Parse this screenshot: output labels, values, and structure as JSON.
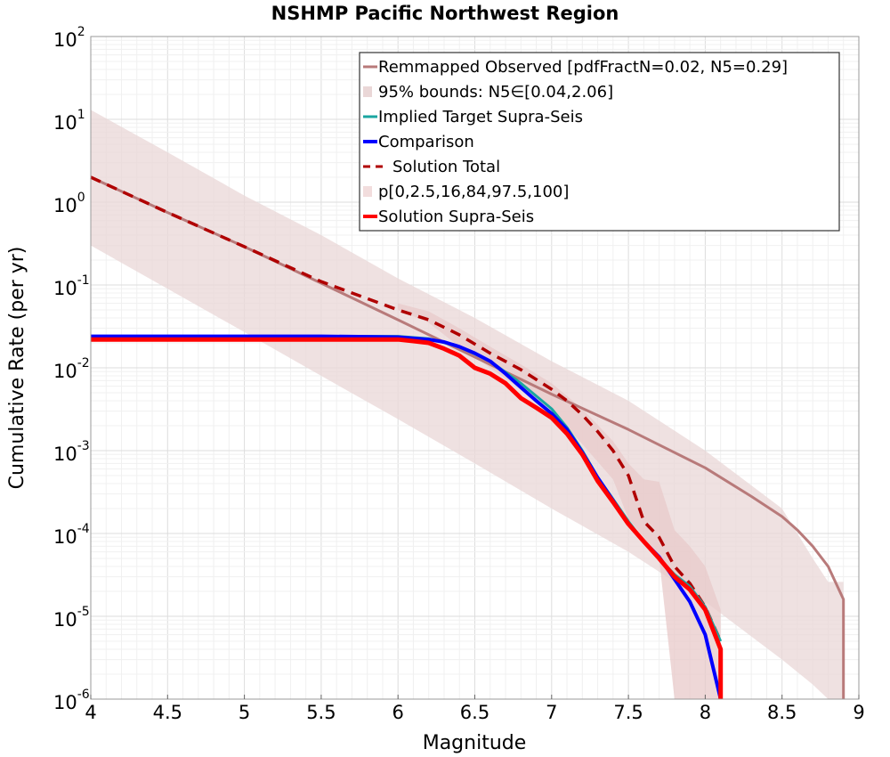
{
  "chart_data": {
    "type": "line",
    "title": "NSHMP Pacific Northwest Region",
    "xlabel": "Magnitude",
    "ylabel": "Cumulative Rate (per yr)",
    "xlim": [
      4,
      9
    ],
    "ylim": [
      1e-06,
      100
    ],
    "yscale": "log",
    "grid": true,
    "legend_position": "top-right",
    "x_ticks": [
      "4",
      "4.5",
      "5",
      "5.5",
      "6",
      "6.5",
      "7",
      "7.5",
      "8",
      "8.5",
      "9"
    ],
    "y_tick_bases": [
      "10",
      "10",
      "10",
      "10",
      "10",
      "10",
      "10",
      "10",
      "10"
    ],
    "y_tick_exps": [
      "-6",
      "-5",
      "-4",
      "-3",
      "-2",
      "-1",
      "0",
      "1",
      "2"
    ],
    "legend": [
      {
        "label": "Remmapped Observed [pdfFractN=0.02, N5=0.29]",
        "color": "#b87a7a",
        "style": "line"
      },
      {
        "label": "95% bounds: N5∈[0.04,2.06]",
        "color": "#ead7d7",
        "style": "patch"
      },
      {
        "label": "Implied Target Supra-Seis",
        "color": "#1aa6a0",
        "style": "line"
      },
      {
        "label": "Comparison",
        "color": "#0000ff",
        "style": "thick-line"
      },
      {
        "label": "Solution Total",
        "color": "#b00000",
        "style": "dashed"
      },
      {
        "label": "p[0,2.5,16,84,97.5,100]",
        "color": "#f2dddd",
        "style": "patch"
      },
      {
        "label": "Solution Supra-Seis",
        "color": "#ff0000",
        "style": "thick-line"
      }
    ],
    "series": [
      {
        "name": "95% bounds: N5∈[0.04,2.06]",
        "kind": "band",
        "color": "#ead7d7",
        "x": [
          4.0,
          4.5,
          5.0,
          5.5,
          6.0,
          6.5,
          7.0,
          7.5,
          8.0,
          8.5,
          8.7,
          8.8,
          8.9
        ],
        "upper": [
          13.0,
          4.0,
          1.2,
          0.4,
          0.12,
          0.04,
          0.012,
          0.004,
          0.001,
          0.0002,
          5e-05,
          2.6e-05,
          2.6e-05
        ],
        "lower": [
          0.3,
          0.09,
          0.027,
          0.008,
          0.0024,
          0.0007,
          0.0002,
          6e-05,
          1.5e-05,
          3e-06,
          1.5e-06,
          1e-06,
          1e-06
        ]
      },
      {
        "name": "p[0,2.5,16,84,97.5,100]",
        "kind": "band",
        "color": "#e8c9c9",
        "x": [
          6.0,
          6.2,
          6.4,
          6.6,
          6.8,
          7.0,
          7.2,
          7.4,
          7.5,
          7.6,
          7.7,
          7.8,
          7.9,
          8.0,
          8.1
        ],
        "upper": [
          0.06,
          0.048,
          0.03,
          0.018,
          0.011,
          0.0065,
          0.0032,
          0.0013,
          0.0007,
          0.00045,
          0.00042,
          0.00011,
          7e-05,
          4e-05,
          1.2e-05
        ],
        "lower": [
          0.05,
          0.035,
          0.018,
          0.01,
          0.0055,
          0.003,
          0.0012,
          0.00045,
          0.00015,
          9e-05,
          5e-05,
          1e-06,
          1e-06,
          1e-06,
          1e-06
        ]
      },
      {
        "name": "Remmapped Observed [pdfFractN=0.02, N5=0.29]",
        "kind": "line",
        "color": "#b87a7a",
        "width": 3,
        "x": [
          4.0,
          4.5,
          5.0,
          5.5,
          6.0,
          6.5,
          7.0,
          7.5,
          8.0,
          8.3,
          8.5,
          8.6,
          8.7,
          8.8,
          8.9,
          8.9
        ],
        "y": [
          2.0,
          0.75,
          0.29,
          0.105,
          0.038,
          0.0135,
          0.0048,
          0.0018,
          0.00062,
          0.00028,
          0.00016,
          0.00011,
          7e-05,
          4e-05,
          1.6e-05,
          1e-06
        ]
      },
      {
        "name": "Solution Total",
        "kind": "line",
        "color": "#b00000",
        "width": 3.5,
        "dash": "12,8",
        "x": [
          4.0,
          4.5,
          5.0,
          5.5,
          6.0,
          6.2,
          6.4,
          6.6,
          6.8,
          7.0,
          7.1,
          7.2,
          7.3,
          7.4,
          7.5,
          7.6,
          7.7,
          7.8,
          7.9,
          8.0,
          8.1
        ],
        "y": [
          2.0,
          0.75,
          0.29,
          0.11,
          0.05,
          0.038,
          0.025,
          0.015,
          0.0095,
          0.0055,
          0.004,
          0.0027,
          0.0017,
          0.001,
          0.0005,
          0.00014,
          9e-05,
          4e-05,
          2.5e-05,
          1.3e-05,
          5e-06
        ]
      },
      {
        "name": "Implied Target Supra-Seis",
        "kind": "line",
        "color": "#1aa6a0",
        "width": 3,
        "x": [
          4.0,
          5.0,
          6.0,
          6.2,
          6.4,
          6.6,
          6.8,
          7.0,
          7.1,
          7.2,
          7.3,
          7.4,
          7.5,
          7.6,
          7.7,
          7.8,
          7.9,
          8.0,
          8.1
        ],
        "y": [
          0.024,
          0.024,
          0.024,
          0.0225,
          0.018,
          0.012,
          0.0065,
          0.0032,
          0.0019,
          0.001,
          0.00048,
          0.00026,
          0.00014,
          8e-05,
          5e-05,
          3.2e-05,
          2.3e-05,
          1.3e-05,
          5e-06
        ]
      },
      {
        "name": "Comparison",
        "kind": "line",
        "color": "#0000ff",
        "width": 4,
        "x": [
          4.0,
          5.0,
          5.5,
          6.0,
          6.2,
          6.3,
          6.4,
          6.5,
          6.6,
          6.7,
          6.8,
          6.9,
          7.0,
          7.1,
          7.2,
          7.3,
          7.4,
          7.5,
          7.6,
          7.7,
          7.8,
          7.9,
          8.0,
          8.1
        ],
        "y": [
          0.024,
          0.024,
          0.024,
          0.0235,
          0.022,
          0.0205,
          0.018,
          0.015,
          0.012,
          0.0085,
          0.0058,
          0.004,
          0.0028,
          0.0018,
          0.00095,
          0.00047,
          0.00025,
          0.00013,
          8e-05,
          5.2e-05,
          2.8e-05,
          1.5e-05,
          6e-06,
          1e-06
        ]
      },
      {
        "name": "Solution Supra-Seis",
        "kind": "line",
        "color": "#ff0000",
        "width": 5,
        "x": [
          4.0,
          5.0,
          5.5,
          6.0,
          6.1,
          6.2,
          6.3,
          6.4,
          6.5,
          6.6,
          6.7,
          6.8,
          6.9,
          7.0,
          7.1,
          7.2,
          7.3,
          7.4,
          7.5,
          7.6,
          7.7,
          7.8,
          7.9,
          8.0,
          8.1,
          8.1
        ],
        "y": [
          0.022,
          0.022,
          0.022,
          0.022,
          0.021,
          0.02,
          0.017,
          0.014,
          0.01,
          0.0085,
          0.0065,
          0.0043,
          0.0033,
          0.0025,
          0.0016,
          0.0009,
          0.00043,
          0.00024,
          0.00013,
          8e-05,
          5e-05,
          3e-05,
          2.1e-05,
          1.2e-05,
          4e-06,
          1e-06
        ]
      }
    ]
  }
}
